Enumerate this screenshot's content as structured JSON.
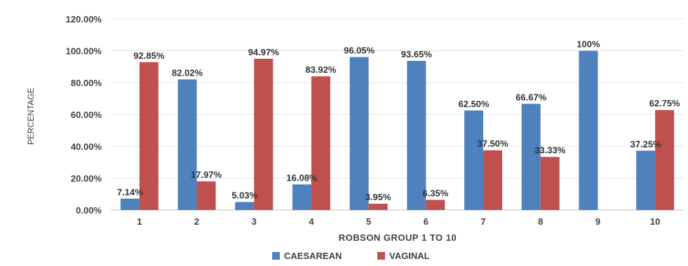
{
  "chart_data": {
    "type": "bar",
    "categories": [
      "1",
      "2",
      "3",
      "4",
      "5",
      "6",
      "7",
      "8",
      "9",
      "10"
    ],
    "series": [
      {
        "name": "CAESAREAN",
        "color": "#4F81BD",
        "values": [
          7.14,
          82.02,
          5.03,
          16.08,
          96.05,
          93.65,
          62.5,
          66.67,
          100,
          37.25
        ],
        "labels": [
          "7.14%",
          "82.02%",
          "5.03%",
          "16.08%",
          "96.05%",
          "93.65%",
          "62.50%",
          "66.67%",
          "100%",
          "37.25%"
        ]
      },
      {
        "name": "VAGINAL",
        "color": "#C0504D",
        "values": [
          92.85,
          17.97,
          94.97,
          83.92,
          3.95,
          6.35,
          37.5,
          33.33,
          null,
          62.75
        ],
        "labels": [
          "92.85%",
          "17.97%",
          "94.97%",
          "83.92%",
          "3.95%",
          "6.35%",
          "37.50%",
          "33.33%",
          "",
          "62.75%"
        ]
      }
    ],
    "yticks": [
      "0.00%",
      "20.00%",
      "40.00%",
      "60.00%",
      "80.00%",
      "100.00%",
      "120.00%"
    ],
    "title": "",
    "xlabel": "ROBSON GROUP 1 TO 10",
    "ylabel": "PERCENTAGE",
    "ylim": [
      0,
      120
    ],
    "grid": true,
    "legend_position": "bottom"
  }
}
